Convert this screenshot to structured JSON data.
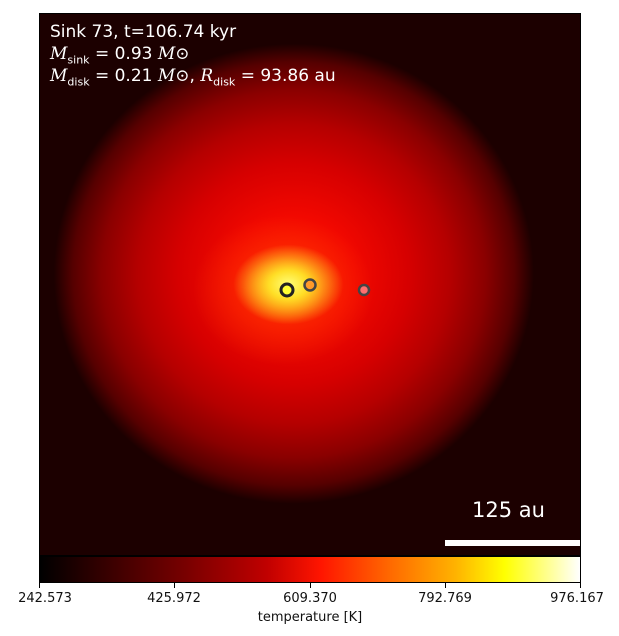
{
  "info": {
    "title": "Sink 73, t=106.74 kyr",
    "m_sink_symbol": "M",
    "m_sink_sub": "sink",
    "m_sink_value": "= 0.93",
    "m_disk_symbol": "M",
    "m_disk_sub": "disk",
    "m_disk_value": "= 0.21",
    "r_disk_symbol": "R",
    "r_disk_sub": "disk",
    "r_disk_value": "= 93.86 au",
    "solar_symbol": "M⊙"
  },
  "scale_bar": {
    "label": "125 au"
  },
  "colorbar": {
    "label": "temperature [K]",
    "ticks": [
      "242.573",
      "425.972",
      "609.370",
      "792.769",
      "976.167"
    ],
    "colors": [
      "#000000",
      "#7d0000",
      "#ff1500",
      "#ffff00",
      "#ffffff"
    ]
  },
  "sinks": [
    {
      "name": "sink-primary",
      "fill": "#ffff33",
      "ring": "#222222"
    },
    {
      "name": "sink-secondary",
      "fill": "#ff9a2a",
      "ring": "#444444"
    },
    {
      "name": "sink-tertiary",
      "fill": "#ff6f6f",
      "ring": "#444444"
    }
  ]
}
